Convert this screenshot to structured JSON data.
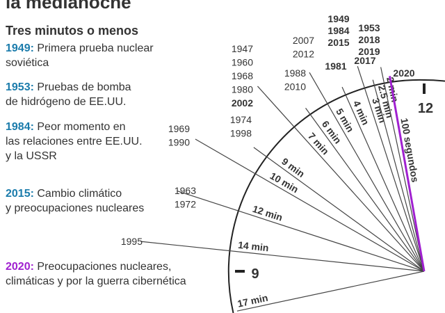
{
  "header": {
    "title": "la medianoche",
    "subtitle": "Tres minutos o menos"
  },
  "notes": [
    {
      "year": "1949:",
      "color": "#1a7bab",
      "lines": [
        "Primera prueba nuclear",
        "soviética"
      ]
    },
    {
      "year": "1953:",
      "color": "#1a7bab",
      "lines": [
        "Pruebas de bomba",
        "de hidrógeno de EE.UU."
      ]
    },
    {
      "year": "1984:",
      "color": "#1a7bab",
      "lines": [
        "Peor momento en",
        "las relaciones entre EE.UU.",
        "y la USSR"
      ]
    },
    {
      "year": "2015:",
      "color": "#1a7bab",
      "lines": [
        "Cambio climático",
        "y preocupaciones nucleares"
      ]
    },
    {
      "year": "2020:",
      "color": "#a020d0",
      "lines": [
        "Preocupaciones nucleares,",
        "climáticas y por la guerra cibernética"
      ]
    }
  ],
  "clock": {
    "hours": [
      "12",
      "9"
    ],
    "ticks": [
      {
        "label": "17 min"
      },
      {
        "label": "14 min",
        "years": [
          {
            "text": "1995",
            "color": "#444"
          }
        ]
      },
      {
        "label": "12 min",
        "years": [
          {
            "text": "1963",
            "color": "#444"
          },
          {
            "text": "1972",
            "color": "#444"
          }
        ]
      },
      {
        "label": "10 min",
        "years": [
          {
            "text": "1969",
            "color": "#444"
          },
          {
            "text": "1990",
            "color": "#444"
          }
        ]
      },
      {
        "label": "9 min",
        "years": [
          {
            "text": "1974",
            "color": "#444"
          },
          {
            "text": "1998",
            "color": "#444"
          }
        ]
      },
      {
        "label": "7 min",
        "years": [
          {
            "text": "1947",
            "color": "#444"
          },
          {
            "text": "1960",
            "color": "#444"
          },
          {
            "text": "1968",
            "color": "#444"
          },
          {
            "text": "1980",
            "color": "#444"
          },
          {
            "text": "2002",
            "color": "#1a7bab"
          }
        ]
      },
      {
        "label": "6 min",
        "years": [
          {
            "text": "1988",
            "color": "#444"
          },
          {
            "text": "2010",
            "color": "#444"
          }
        ]
      },
      {
        "label": "5 min",
        "years": [
          {
            "text": "2007",
            "color": "#444"
          },
          {
            "text": "2012",
            "color": "#444"
          }
        ]
      },
      {
        "label": "4 min",
        "years": [
          {
            "text": "1981",
            "color": "#0e6e6e"
          }
        ]
      },
      {
        "label": "3 min",
        "years": [
          {
            "text": "1949",
            "color": "#1a7bab"
          },
          {
            "text": "1984",
            "color": "#1a7bab"
          },
          {
            "text": "2015",
            "color": "#1a7bab"
          }
        ]
      },
      {
        "label": "2.5 min",
        "years": [
          {
            "text": "2017",
            "color": "#5b3b8c"
          }
        ]
      },
      {
        "label": "2 min",
        "years": [
          {
            "text": "1953",
            "color": "#1a7bab"
          },
          {
            "text": "2018",
            "color": "#a00000"
          },
          {
            "text": "2019",
            "color": "#a00000"
          }
        ]
      },
      {
        "label": "100 segundos",
        "color": "#a020d0",
        "years": [
          {
            "text": "2020",
            "color": "#a020d0"
          }
        ]
      }
    ]
  }
}
